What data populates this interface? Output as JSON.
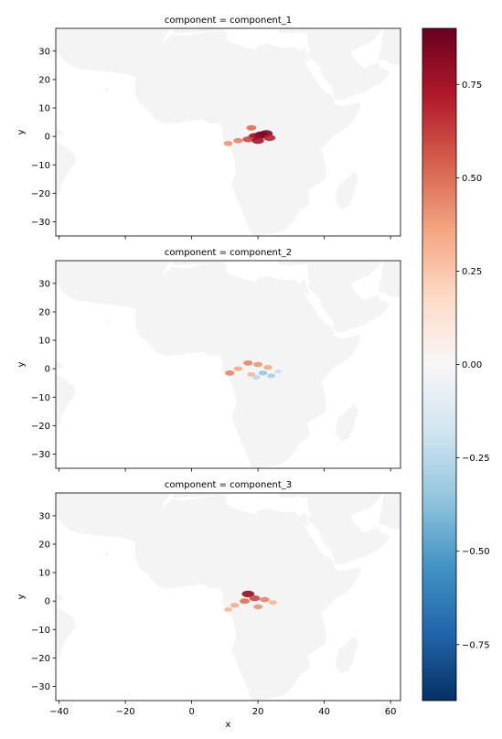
{
  "figure": {
    "panel_titles": [
      "component = component_1",
      "component = component_2",
      "component = component_3"
    ],
    "xlabel": "x",
    "ylabel": "y"
  },
  "colors": {
    "background": "#ffffff",
    "land": "#f4f4f4",
    "axes": "#000000",
    "cmap_stops": [
      "#053061",
      "#2166ac",
      "#4393c3",
      "#92c5de",
      "#d1e5f0",
      "#f7f7f7",
      "#fddbc7",
      "#f4a582",
      "#d6604d",
      "#b2182b",
      "#67001f"
    ]
  },
  "chart_data": {
    "type": "heatmap",
    "layout": "3 map panels stacked vertically sharing one colorbar on the right",
    "colormap": "RdBu_r",
    "xlim": [
      -41,
      63
    ],
    "ylim": [
      -35,
      38
    ],
    "xticks": [
      -40,
      -20,
      0,
      20,
      40,
      60
    ],
    "xtick_labels": [
      "−40",
      "−20",
      "0",
      "20",
      "40",
      "60"
    ],
    "yticks": [
      -30,
      -20,
      -10,
      0,
      10,
      20,
      30
    ],
    "ytick_labels": [
      "−30",
      "−20",
      "−10",
      "0",
      "10",
      "20",
      "30"
    ],
    "colorbar": {
      "vmin": -0.9,
      "vmax": 0.9,
      "ticks": [
        0.75,
        0.5,
        0.25,
        0.0,
        -0.25,
        -0.5,
        -0.75
      ],
      "tick_labels": [
        "0.75",
        "0.50",
        "0.25",
        "0.00",
        "−0.25",
        "−0.50",
        "−0.75"
      ]
    },
    "panels": [
      {
        "title": "component = component_1",
        "hotspots": [
          {
            "x": 21.0,
            "y": 0.5,
            "value": 0.9
          },
          {
            "x": 19.0,
            "y": 0.0,
            "value": 0.8
          },
          {
            "x": 22.5,
            "y": 1.0,
            "value": 0.85
          },
          {
            "x": 17.0,
            "y": -1.0,
            "value": 0.6
          },
          {
            "x": 14.0,
            "y": -1.5,
            "value": 0.45
          },
          {
            "x": 11.0,
            "y": -2.5,
            "value": 0.4
          },
          {
            "x": 18.0,
            "y": 3.0,
            "value": 0.5
          },
          {
            "x": 23.5,
            "y": -0.5,
            "value": 0.7
          },
          {
            "x": 20.0,
            "y": -1.5,
            "value": 0.75
          }
        ]
      },
      {
        "title": "component = component_2",
        "hotspots": [
          {
            "x": 17.0,
            "y": 2.0,
            "value": 0.45
          },
          {
            "x": 20.0,
            "y": 1.5,
            "value": 0.4
          },
          {
            "x": 14.0,
            "y": 0.0,
            "value": 0.35
          },
          {
            "x": 11.5,
            "y": -1.5,
            "value": 0.45
          },
          {
            "x": 23.0,
            "y": 0.5,
            "value": 0.35
          },
          {
            "x": 18.0,
            "y": -2.0,
            "value": 0.3
          },
          {
            "x": 21.5,
            "y": -1.5,
            "value": -0.35
          },
          {
            "x": 24.0,
            "y": -2.5,
            "value": -0.3
          },
          {
            "x": 19.5,
            "y": -3.0,
            "value": -0.25
          },
          {
            "x": 26.0,
            "y": -1.0,
            "value": -0.2
          }
        ]
      },
      {
        "title": "component = component_3",
        "hotspots": [
          {
            "x": 17.0,
            "y": 2.5,
            "value": 0.8
          },
          {
            "x": 19.0,
            "y": 1.0,
            "value": 0.6
          },
          {
            "x": 16.0,
            "y": 0.0,
            "value": 0.5
          },
          {
            "x": 22.0,
            "y": 0.5,
            "value": 0.45
          },
          {
            "x": 13.0,
            "y": -1.5,
            "value": 0.35
          },
          {
            "x": 11.0,
            "y": -3.0,
            "value": 0.3
          },
          {
            "x": 20.0,
            "y": -2.0,
            "value": 0.4
          },
          {
            "x": 24.5,
            "y": -0.5,
            "value": 0.3
          }
        ]
      }
    ]
  }
}
